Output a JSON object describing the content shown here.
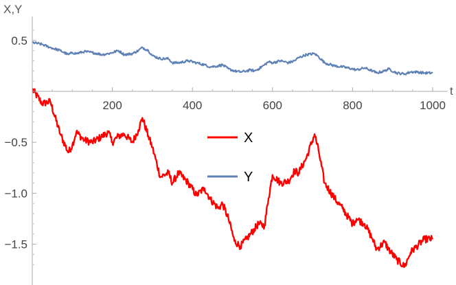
{
  "chart_data": {
    "type": "line",
    "title": "",
    "xlabel": "t",
    "ylabel": "X,Y",
    "xlim": [
      0,
      1000
    ],
    "ylim": [
      -1.85,
      0.72
    ],
    "x_ticks": [
      200,
      400,
      600,
      800,
      1000
    ],
    "x_tick_labels": [
      "200",
      "400",
      "600",
      "800",
      "1000"
    ],
    "y_ticks": [
      0.5,
      -0.5,
      -1.0,
      -1.5
    ],
    "y_tick_labels": [
      "0.5",
      "−0.5",
      "−1.0",
      "−1.5"
    ],
    "grid": false,
    "legend_position": "center",
    "x": [
      0,
      25,
      45,
      70,
      90,
      100,
      110,
      130,
      150,
      175,
      190,
      200,
      215,
      230,
      250,
      265,
      275,
      290,
      300,
      320,
      340,
      350,
      365,
      390,
      410,
      430,
      445,
      465,
      475,
      490,
      505,
      520,
      535,
      545,
      555,
      565,
      580,
      590,
      600,
      620,
      640,
      655,
      665,
      685,
      705,
      715,
      730,
      755,
      775,
      800,
      810,
      830,
      850,
      860,
      880,
      890,
      910,
      930,
      945,
      960,
      980,
      1000
    ],
    "series": [
      {
        "name": "X",
        "color": "#ff0000",
        "values": [
          0.02,
          -0.12,
          -0.1,
          -0.42,
          -0.6,
          -0.53,
          -0.4,
          -0.48,
          -0.5,
          -0.44,
          -0.4,
          -0.5,
          -0.44,
          -0.42,
          -0.5,
          -0.38,
          -0.26,
          -0.44,
          -0.55,
          -0.84,
          -0.8,
          -0.9,
          -0.8,
          -0.9,
          -1.02,
          -0.95,
          -1.06,
          -1.15,
          -1.1,
          -1.25,
          -1.47,
          -1.52,
          -1.45,
          -1.4,
          -1.35,
          -1.3,
          -1.32,
          -1.05,
          -0.82,
          -0.9,
          -0.88,
          -0.78,
          -0.8,
          -0.65,
          -0.42,
          -0.58,
          -0.9,
          -1.05,
          -1.15,
          -1.3,
          -1.25,
          -1.3,
          -1.45,
          -1.55,
          -1.48,
          -1.55,
          -1.65,
          -1.72,
          -1.58,
          -1.52,
          -1.45,
          -1.45
        ]
      },
      {
        "name": "Y",
        "color": "#5e81b5",
        "values": [
          0.48,
          0.46,
          0.43,
          0.4,
          0.36,
          0.38,
          0.37,
          0.39,
          0.38,
          0.36,
          0.37,
          0.38,
          0.4,
          0.36,
          0.37,
          0.4,
          0.43,
          0.4,
          0.35,
          0.32,
          0.32,
          0.28,
          0.28,
          0.3,
          0.28,
          0.26,
          0.24,
          0.25,
          0.26,
          0.22,
          0.2,
          0.19,
          0.2,
          0.21,
          0.2,
          0.22,
          0.26,
          0.29,
          0.28,
          0.3,
          0.28,
          0.3,
          0.33,
          0.36,
          0.37,
          0.34,
          0.28,
          0.25,
          0.24,
          0.22,
          0.21,
          0.23,
          0.2,
          0.18,
          0.2,
          0.22,
          0.18,
          0.17,
          0.19,
          0.19,
          0.18,
          0.18
        ]
      }
    ]
  }
}
